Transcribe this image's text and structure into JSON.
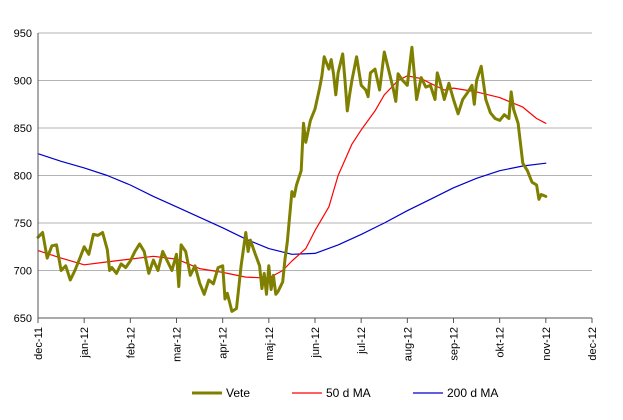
{
  "chart_data": {
    "type": "line",
    "title": "",
    "xlabel": "",
    "ylabel": "",
    "ylim": [
      650,
      950
    ],
    "yticks": [
      650,
      700,
      750,
      800,
      850,
      900,
      950
    ],
    "grid": "horizontal",
    "legend_position": "bottom",
    "x_tick_labels": [
      "dec-11",
      "jan-12",
      "feb-12",
      "mar-12",
      "apr-12",
      "maj-12",
      "jun-12",
      "jul-12",
      "aug-12",
      "sep-12",
      "okt-12",
      "nov-12",
      "dec-12"
    ],
    "series": [
      {
        "name": "Vete",
        "color": "#808000",
        "points": [
          [
            0,
            735
          ],
          [
            0.1,
            740
          ],
          [
            0.2,
            713
          ],
          [
            0.3,
            726
          ],
          [
            0.4,
            727
          ],
          [
            0.5,
            700
          ],
          [
            0.6,
            705
          ],
          [
            0.7,
            690
          ],
          [
            0.8,
            700
          ],
          [
            0.9,
            712
          ],
          [
            1.0,
            725
          ],
          [
            1.1,
            717
          ],
          [
            1.2,
            738
          ],
          [
            1.3,
            737
          ],
          [
            1.4,
            740
          ],
          [
            1.5,
            722
          ],
          [
            1.55,
            700
          ],
          [
            1.6,
            703
          ],
          [
            1.7,
            697
          ],
          [
            1.8,
            707
          ],
          [
            1.9,
            703
          ],
          [
            2.0,
            710
          ],
          [
            2.1,
            720
          ],
          [
            2.2,
            728
          ],
          [
            2.3,
            720
          ],
          [
            2.4,
            697
          ],
          [
            2.5,
            711
          ],
          [
            2.6,
            700
          ],
          [
            2.7,
            720
          ],
          [
            2.8,
            710
          ],
          [
            2.9,
            700
          ],
          [
            3.0,
            717
          ],
          [
            3.05,
            683
          ],
          [
            3.1,
            727
          ],
          [
            3.2,
            720
          ],
          [
            3.3,
            695
          ],
          [
            3.4,
            705
          ],
          [
            3.5,
            687
          ],
          [
            3.6,
            675
          ],
          [
            3.7,
            690
          ],
          [
            3.8,
            686
          ],
          [
            3.9,
            703
          ],
          [
            4.0,
            705
          ],
          [
            4.05,
            670
          ],
          [
            4.1,
            676
          ],
          [
            4.2,
            657
          ],
          [
            4.3,
            660
          ],
          [
            4.4,
            705
          ],
          [
            4.5,
            740
          ],
          [
            4.55,
            720
          ],
          [
            4.6,
            732
          ],
          [
            4.7,
            718
          ],
          [
            4.8,
            705
          ],
          [
            4.85,
            681
          ],
          [
            4.9,
            697
          ],
          [
            4.95,
            675
          ],
          [
            5.0,
            705
          ],
          [
            5.05,
            680
          ],
          [
            5.1,
            695
          ],
          [
            5.15,
            675
          ],
          [
            5.2,
            678
          ],
          [
            5.3,
            688
          ],
          [
            5.35,
            712
          ],
          [
            5.4,
            730
          ],
          [
            5.5,
            783
          ],
          [
            5.55,
            778
          ],
          [
            5.6,
            790
          ],
          [
            5.7,
            805
          ],
          [
            5.75,
            855
          ],
          [
            5.8,
            835
          ],
          [
            5.9,
            858
          ],
          [
            6.0,
            870
          ],
          [
            6.1,
            892
          ],
          [
            6.15,
            905
          ],
          [
            6.2,
            925
          ],
          [
            6.3,
            912
          ],
          [
            6.35,
            922
          ],
          [
            6.4,
            907
          ],
          [
            6.45,
            885
          ],
          [
            6.5,
            908
          ],
          [
            6.6,
            928
          ],
          [
            6.65,
            900
          ],
          [
            6.7,
            868
          ],
          [
            6.75,
            885
          ],
          [
            6.8,
            900
          ],
          [
            6.9,
            925
          ],
          [
            7.0,
            895
          ],
          [
            7.1,
            890
          ],
          [
            7.15,
            883
          ],
          [
            7.2,
            908
          ],
          [
            7.3,
            912
          ],
          [
            7.4,
            890
          ],
          [
            7.5,
            930
          ],
          [
            7.6,
            910
          ],
          [
            7.7,
            890
          ],
          [
            7.75,
            878
          ],
          [
            7.8,
            907
          ],
          [
            7.9,
            900
          ],
          [
            8.0,
            895
          ],
          [
            8.1,
            935
          ],
          [
            8.2,
            880
          ],
          [
            8.3,
            903
          ],
          [
            8.4,
            893
          ],
          [
            8.5,
            895
          ],
          [
            8.6,
            880
          ],
          [
            8.65,
            908
          ],
          [
            8.7,
            900
          ],
          [
            8.8,
            880
          ],
          [
            8.9,
            897
          ],
          [
            9.0,
            880
          ],
          [
            9.1,
            865
          ],
          [
            9.2,
            880
          ],
          [
            9.3,
            887
          ],
          [
            9.4,
            895
          ],
          [
            9.45,
            875
          ],
          [
            9.5,
            900
          ],
          [
            9.6,
            915
          ],
          [
            9.7,
            880
          ],
          [
            9.8,
            866
          ],
          [
            9.9,
            860
          ],
          [
            10.0,
            858
          ],
          [
            10.1,
            864
          ],
          [
            10.2,
            860
          ],
          [
            10.25,
            888
          ],
          [
            10.3,
            870
          ],
          [
            10.4,
            855
          ],
          [
            10.5,
            813
          ],
          [
            10.6,
            805
          ],
          [
            10.7,
            793
          ],
          [
            10.8,
            790
          ],
          [
            10.85,
            775
          ],
          [
            10.9,
            780
          ],
          [
            11.0,
            778
          ]
        ]
      },
      {
        "name": "50 d MA",
        "color": "#ff0000",
        "points": [
          [
            0,
            721
          ],
          [
            0.5,
            713
          ],
          [
            1.0,
            706
          ],
          [
            1.5,
            709
          ],
          [
            2.0,
            712
          ],
          [
            2.5,
            715
          ],
          [
            3.0,
            712
          ],
          [
            3.5,
            702
          ],
          [
            4.0,
            698
          ],
          [
            4.5,
            693
          ],
          [
            5.0,
            692
          ],
          [
            5.3,
            700
          ],
          [
            5.5,
            710
          ],
          [
            5.8,
            723
          ],
          [
            6.0,
            742
          ],
          [
            6.3,
            767
          ],
          [
            6.5,
            800
          ],
          [
            6.8,
            833
          ],
          [
            7.0,
            848
          ],
          [
            7.3,
            868
          ],
          [
            7.5,
            885
          ],
          [
            7.8,
            900
          ],
          [
            8.0,
            905
          ],
          [
            8.3,
            902
          ],
          [
            8.5,
            897
          ],
          [
            8.8,
            890
          ],
          [
            9.0,
            892
          ],
          [
            9.5,
            888
          ],
          [
            10.0,
            882
          ],
          [
            10.5,
            872
          ],
          [
            10.8,
            860
          ],
          [
            11.0,
            855
          ]
        ]
      },
      {
        "name": "200 d MA",
        "color": "#0000cc",
        "points": [
          [
            0,
            823
          ],
          [
            0.5,
            815
          ],
          [
            1.0,
            808
          ],
          [
            1.5,
            800
          ],
          [
            2.0,
            790
          ],
          [
            2.5,
            778
          ],
          [
            3.0,
            767
          ],
          [
            3.5,
            756
          ],
          [
            4.0,
            745
          ],
          [
            4.5,
            733
          ],
          [
            5.0,
            723
          ],
          [
            5.5,
            717
          ],
          [
            6.0,
            718
          ],
          [
            6.5,
            727
          ],
          [
            7.0,
            738
          ],
          [
            7.5,
            750
          ],
          [
            8.0,
            763
          ],
          [
            8.5,
            775
          ],
          [
            9.0,
            787
          ],
          [
            9.5,
            797
          ],
          [
            10.0,
            805
          ],
          [
            10.5,
            810
          ],
          [
            11.0,
            813
          ]
        ]
      }
    ]
  }
}
